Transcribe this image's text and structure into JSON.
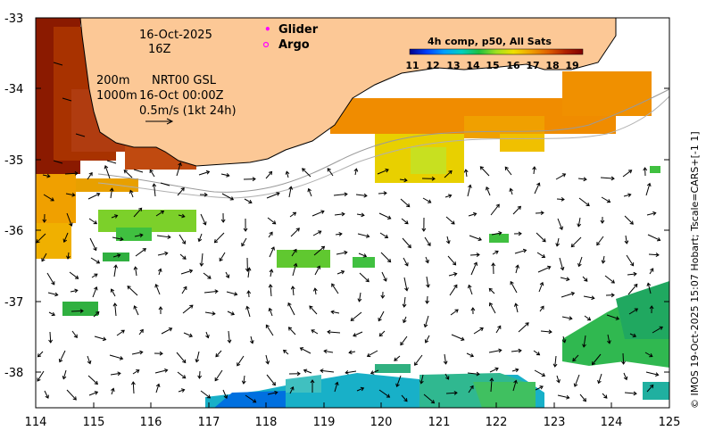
{
  "map": {
    "date_label": "16-Oct-2025",
    "time_label": "16Z",
    "depth_label": "200m",
    "contour2_label": "1000m",
    "current_source_label": "NRT00 GSL",
    "current_time_label": "16-Oct 00:00Z",
    "scale_label": "0.5m/s (1kt 24h)",
    "x_ticks": [
      "114",
      "115",
      "116",
      "117",
      "118",
      "119",
      "120",
      "121",
      "122",
      "123",
      "124",
      "125"
    ],
    "y_ticks": [
      "-33",
      "-34",
      "-35",
      "-36",
      "-37",
      "-38"
    ],
    "lon_range": [
      114,
      125
    ],
    "lat_range": [
      -38.5,
      -33
    ],
    "land_color": "#fcc896"
  },
  "legend": {
    "glider_label": "Glider",
    "argo_label": "Argo",
    "glider_symbol": "•",
    "argo_symbol": "o",
    "glider_color": "#ff00ff",
    "argo_color": "#ff00ff"
  },
  "colorbar": {
    "title": "4h comp, p50, All Sats",
    "ticks": [
      "11",
      "12",
      "13",
      "14",
      "15",
      "16",
      "17",
      "18",
      "19"
    ],
    "colors": [
      "#00008b",
      "#0040ff",
      "#00a0ff",
      "#00d0c0",
      "#20c040",
      "#a0e020",
      "#f0e000",
      "#f0a000",
      "#e06000",
      "#b02000",
      "#800000"
    ]
  },
  "credit": "© IMOS 19-Oct-2025 15:07 Hobart; Tscale=CARS+[-1 1]"
}
